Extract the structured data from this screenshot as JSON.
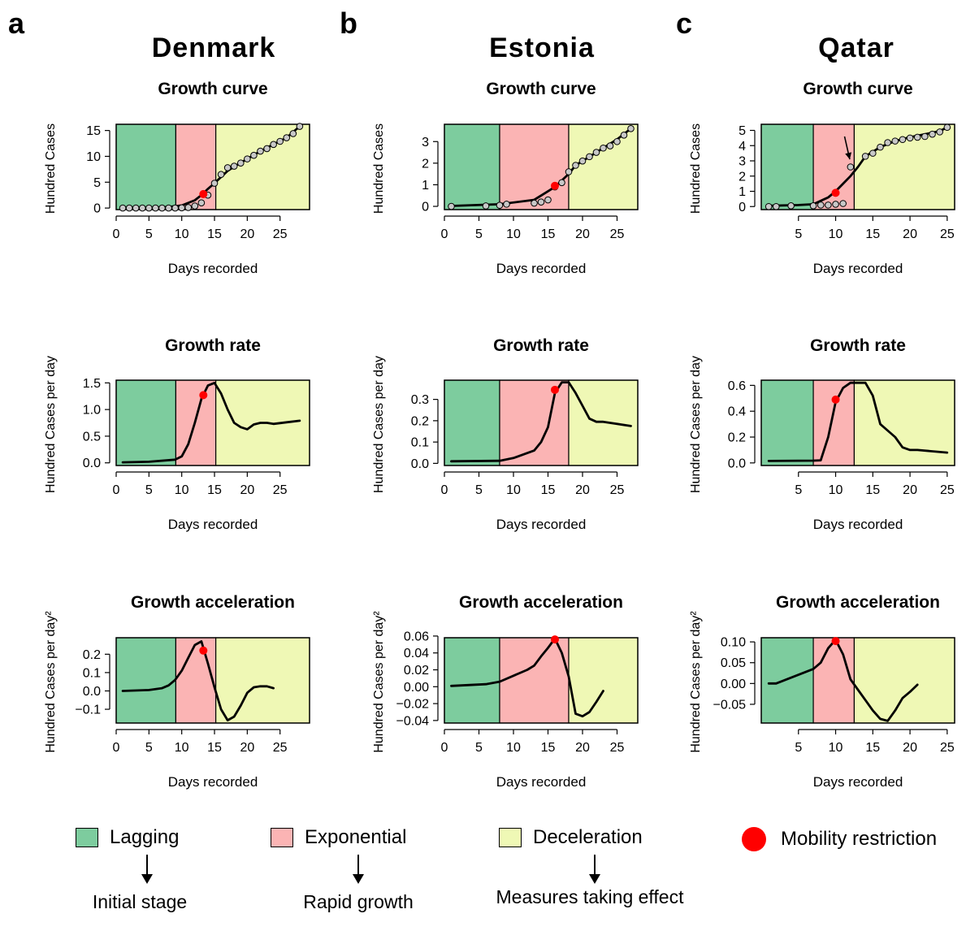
{
  "panel_letters": [
    "a",
    "b",
    "c"
  ],
  "countries": [
    "Denmark",
    "Estonia",
    "Qatar"
  ],
  "colors": {
    "lagging": "#7dcc9e",
    "exponential": "#fbb4b4",
    "deceleration": "#eff8b5",
    "mobility": "#ff0000",
    "points": "#c8c8c8"
  },
  "legend": {
    "lagging": {
      "label": "Lagging",
      "desc": "Initial stage"
    },
    "exponential": {
      "label": "Exponential",
      "desc": "Rapid growth"
    },
    "deceleration": {
      "label": "Deceleration",
      "desc": "Measures taking effect"
    },
    "mobility": {
      "label": "Mobility restriction"
    }
  },
  "chart_data": [
    {
      "country": "Denmark",
      "row": 0,
      "col": 0,
      "type": "line",
      "title": "Growth curve",
      "xlabel": "Days recorded",
      "ylabel": "Hundred Cases",
      "xlim": [
        0,
        29.5
      ],
      "ylim": [
        -0.3,
        16.2
      ],
      "xticks": [
        0,
        5,
        10,
        15,
        20,
        25
      ],
      "yticks": [
        0,
        5,
        10,
        15
      ],
      "phases": [
        {
          "stage": "lagging",
          "from": 0,
          "to": 9.1
        },
        {
          "stage": "exponential",
          "from": 9.1,
          "to": 15.2
        },
        {
          "stage": "deceleration",
          "from": 15.2,
          "to": 29.5
        }
      ],
      "curve": [
        [
          1,
          0
        ],
        [
          5,
          0.02
        ],
        [
          8,
          0.2
        ],
        [
          10,
          0.5
        ],
        [
          12,
          1.5
        ],
        [
          13,
          2.5
        ],
        [
          14,
          3.7
        ],
        [
          15,
          4.8
        ],
        [
          16,
          6
        ],
        [
          17,
          7.2
        ],
        [
          18,
          8
        ],
        [
          20,
          9.5
        ],
        [
          22,
          11
        ],
        [
          24,
          12.3
        ],
        [
          26,
          13.6
        ],
        [
          28,
          15.8
        ]
      ],
      "points": [
        [
          1,
          0
        ],
        [
          2,
          0
        ],
        [
          3,
          0
        ],
        [
          4,
          0
        ],
        [
          5,
          0
        ],
        [
          6,
          0
        ],
        [
          7,
          0
        ],
        [
          8,
          0
        ],
        [
          9,
          0
        ],
        [
          10,
          0.05
        ],
        [
          11,
          0.1
        ],
        [
          12,
          0.4
        ],
        [
          13,
          1
        ],
        [
          14,
          2.5
        ],
        [
          15,
          4.8
        ],
        [
          16,
          6.5
        ],
        [
          17,
          7.8
        ],
        [
          18,
          8.1
        ],
        [
          19,
          8.7
        ],
        [
          20,
          9.5
        ],
        [
          21,
          10.2
        ],
        [
          22,
          11
        ],
        [
          23,
          11.5
        ],
        [
          24,
          12.3
        ],
        [
          25,
          12.9
        ],
        [
          26,
          13.6
        ],
        [
          27,
          14.4
        ],
        [
          28,
          15.8
        ]
      ],
      "mobility": [
        13.3,
        2.7
      ]
    },
    {
      "country": "Estonia",
      "row": 0,
      "col": 1,
      "type": "line",
      "title": "Growth curve",
      "xlabel": "Days recorded",
      "ylabel": "Hundred Cases",
      "xlim": [
        0,
        28
      ],
      "ylim": [
        -0.15,
        3.8
      ],
      "xticks": [
        0,
        5,
        10,
        15,
        20,
        25
      ],
      "yticks": [
        0,
        1,
        2,
        3
      ],
      "phases": [
        {
          "stage": "lagging",
          "from": 0,
          "to": 8
        },
        {
          "stage": "exponential",
          "from": 8,
          "to": 18
        },
        {
          "stage": "deceleration",
          "from": 18,
          "to": 28
        }
      ],
      "curve": [
        [
          1,
          0.02
        ],
        [
          8,
          0.1
        ],
        [
          13,
          0.3
        ],
        [
          15,
          0.7
        ],
        [
          16,
          0.9
        ],
        [
          17,
          1.2
        ],
        [
          18,
          1.5
        ],
        [
          19,
          1.9
        ],
        [
          21,
          2.3
        ],
        [
          23,
          2.7
        ],
        [
          25,
          3.1
        ],
        [
          27,
          3.6
        ]
      ],
      "points": [
        [
          1,
          0
        ],
        [
          6,
          0.02
        ],
        [
          8,
          0.05
        ],
        [
          9,
          0.1
        ],
        [
          13,
          0.15
        ],
        [
          14,
          0.2
        ],
        [
          15,
          0.3
        ],
        [
          16,
          0.9
        ],
        [
          17,
          1.1
        ],
        [
          18,
          1.6
        ],
        [
          19,
          1.9
        ],
        [
          20,
          2.1
        ],
        [
          21,
          2.3
        ],
        [
          22,
          2.5
        ],
        [
          23,
          2.7
        ],
        [
          24,
          2.8
        ],
        [
          25,
          3.0
        ],
        [
          26,
          3.3
        ],
        [
          27,
          3.6
        ]
      ],
      "mobility": [
        16,
        0.95
      ]
    },
    {
      "country": "Qatar",
      "row": 0,
      "col": 2,
      "type": "line",
      "title": "Growth curve",
      "xlabel": "Days recorded",
      "ylabel": "Hundred Cases",
      "xlim": [
        0,
        26
      ],
      "ylim": [
        -0.2,
        5.4
      ],
      "xticks": [
        5,
        10,
        15,
        20,
        25
      ],
      "yticks": [
        0,
        1,
        2,
        3,
        4,
        5
      ],
      "phases": [
        {
          "stage": "lagging",
          "from": 0,
          "to": 7
        },
        {
          "stage": "exponential",
          "from": 7,
          "to": 12.5
        },
        {
          "stage": "deceleration",
          "from": 12.5,
          "to": 26
        }
      ],
      "curve": [
        [
          1,
          0.05
        ],
        [
          5,
          0.1
        ],
        [
          7,
          0.15
        ],
        [
          9,
          0.6
        ],
        [
          10,
          1.0
        ],
        [
          11,
          1.5
        ],
        [
          12,
          2.0
        ],
        [
          13,
          2.6
        ],
        [
          14,
          3.3
        ],
        [
          16,
          3.9
        ],
        [
          18,
          4.3
        ],
        [
          20,
          4.55
        ],
        [
          22,
          4.75
        ],
        [
          24,
          4.95
        ],
        [
          25,
          5.2
        ]
      ],
      "points": [
        [
          1,
          0
        ],
        [
          2,
          0
        ],
        [
          4,
          0.05
        ],
        [
          7,
          0.05
        ],
        [
          8,
          0.1
        ],
        [
          9,
          0.1
        ],
        [
          10,
          0.15
        ],
        [
          11,
          0.2
        ],
        [
          12,
          2.6
        ],
        [
          14,
          3.3
        ],
        [
          15,
          3.5
        ],
        [
          16,
          3.9
        ],
        [
          17,
          4.2
        ],
        [
          18,
          4.3
        ],
        [
          19,
          4.4
        ],
        [
          20,
          4.5
        ],
        [
          21,
          4.55
        ],
        [
          22,
          4.6
        ],
        [
          23,
          4.75
        ],
        [
          24,
          4.9
        ],
        [
          25,
          5.2
        ]
      ],
      "mobility": [
        10,
        0.9
      ],
      "arrow": [
        [
          11.2,
          4.6
        ],
        [
          11.9,
          3.1
        ]
      ]
    },
    {
      "country": "Denmark",
      "row": 1,
      "col": 0,
      "type": "line",
      "title": "Growth rate",
      "xlabel": "Days recorded",
      "ylabel": "Hundred Cases per day",
      "xlim": [
        0,
        29.5
      ],
      "ylim": [
        -0.05,
        1.55
      ],
      "xticks": [
        0,
        5,
        10,
        15,
        20,
        25
      ],
      "yticks": [
        0.0,
        0.5,
        1.0,
        1.5
      ],
      "ydecimals": 1,
      "phases": [
        {
          "stage": "lagging",
          "from": 0,
          "to": 9.1
        },
        {
          "stage": "exponential",
          "from": 9.1,
          "to": 15.2
        },
        {
          "stage": "deceleration",
          "from": 15.2,
          "to": 29.5
        }
      ],
      "curve": [
        [
          1,
          0.01
        ],
        [
          5,
          0.02
        ],
        [
          9,
          0.06
        ],
        [
          10,
          0.12
        ],
        [
          11,
          0.35
        ],
        [
          12,
          0.75
        ],
        [
          13,
          1.2
        ],
        [
          14,
          1.45
        ],
        [
          15,
          1.5
        ],
        [
          16,
          1.3
        ],
        [
          17,
          1.0
        ],
        [
          18,
          0.75
        ],
        [
          19,
          0.67
        ],
        [
          20,
          0.63
        ],
        [
          21,
          0.72
        ],
        [
          22,
          0.75
        ],
        [
          23,
          0.75
        ],
        [
          24,
          0.73
        ],
        [
          26,
          0.76
        ],
        [
          28,
          0.79
        ]
      ],
      "mobility": [
        13.3,
        1.27
      ]
    },
    {
      "country": "Estonia",
      "row": 1,
      "col": 1,
      "type": "line",
      "title": "Growth rate",
      "xlabel": "Days recorded",
      "ylabel": "Hundred Cases per day",
      "xlim": [
        0,
        28
      ],
      "ylim": [
        -0.01,
        0.39
      ],
      "xticks": [
        0,
        5,
        10,
        15,
        20,
        25
      ],
      "yticks": [
        0.0,
        0.1,
        0.2,
        0.3
      ],
      "ydecimals": 1,
      "phases": [
        {
          "stage": "lagging",
          "from": 0,
          "to": 8
        },
        {
          "stage": "exponential",
          "from": 8,
          "to": 18
        },
        {
          "stage": "deceleration",
          "from": 18,
          "to": 28
        }
      ],
      "curve": [
        [
          1,
          0.01
        ],
        [
          8,
          0.012
        ],
        [
          10,
          0.025
        ],
        [
          13,
          0.06
        ],
        [
          14,
          0.1
        ],
        [
          15,
          0.17
        ],
        [
          16,
          0.33
        ],
        [
          17,
          0.38
        ],
        [
          18,
          0.38
        ],
        [
          19,
          0.33
        ],
        [
          20,
          0.27
        ],
        [
          21,
          0.21
        ],
        [
          22,
          0.195
        ],
        [
          23,
          0.195
        ],
        [
          27,
          0.175
        ]
      ],
      "mobility": [
        16,
        0.345
      ]
    },
    {
      "country": "Qatar",
      "row": 1,
      "col": 2,
      "type": "line",
      "title": "Growth rate",
      "xlabel": "Days recorded",
      "ylabel": "Hundred Cases per day",
      "xlim": [
        0,
        26
      ],
      "ylim": [
        -0.02,
        0.64
      ],
      "xticks": [
        5,
        10,
        15,
        20,
        25
      ],
      "yticks": [
        0.0,
        0.2,
        0.4,
        0.6
      ],
      "ydecimals": 1,
      "phases": [
        {
          "stage": "lagging",
          "from": 0,
          "to": 7
        },
        {
          "stage": "exponential",
          "from": 7,
          "to": 12.5
        },
        {
          "stage": "deceleration",
          "from": 12.5,
          "to": 26
        }
      ],
      "curve": [
        [
          1,
          0.015
        ],
        [
          7,
          0.018
        ],
        [
          8,
          0.02
        ],
        [
          9,
          0.2
        ],
        [
          10,
          0.47
        ],
        [
          11,
          0.58
        ],
        [
          12,
          0.62
        ],
        [
          13,
          0.62
        ],
        [
          14,
          0.62
        ],
        [
          15,
          0.52
        ],
        [
          16,
          0.3
        ],
        [
          17,
          0.25
        ],
        [
          18,
          0.2
        ],
        [
          19,
          0.12
        ],
        [
          20,
          0.1
        ],
        [
          21,
          0.1
        ],
        [
          25,
          0.08
        ]
      ],
      "mobility": [
        10,
        0.49
      ]
    },
    {
      "country": "Denmark",
      "row": 2,
      "col": 0,
      "type": "line",
      "title": "Growth acceleration",
      "xlabel": "Days recorded",
      "ylabel": "Hundred Cases per day²",
      "xlim": [
        0,
        29.5
      ],
      "ylim": [
        -0.175,
        0.29
      ],
      "xticks": [
        0,
        5,
        10,
        15,
        20,
        25
      ],
      "yticks": [
        -0.1,
        0.0,
        0.1,
        0.2
      ],
      "ydecimals": 1,
      "phases": [
        {
          "stage": "lagging",
          "from": 0,
          "to": 9.1
        },
        {
          "stage": "exponential",
          "from": 9.1,
          "to": 15.2
        },
        {
          "stage": "deceleration",
          "from": 15.2,
          "to": 29.5
        }
      ],
      "curve": [
        [
          1,
          0.0
        ],
        [
          5,
          0.005
        ],
        [
          7,
          0.015
        ],
        [
          8,
          0.03
        ],
        [
          9,
          0.06
        ],
        [
          10,
          0.11
        ],
        [
          11,
          0.18
        ],
        [
          12,
          0.25
        ],
        [
          13,
          0.27
        ],
        [
          14,
          0.15
        ],
        [
          15,
          0.02
        ],
        [
          16,
          -0.1
        ],
        [
          17,
          -0.16
        ],
        [
          18,
          -0.14
        ],
        [
          19,
          -0.08
        ],
        [
          20,
          -0.01
        ],
        [
          21,
          0.02
        ],
        [
          22,
          0.025
        ],
        [
          23,
          0.025
        ],
        [
          24,
          0.015
        ]
      ],
      "mobility": [
        13.3,
        0.22
      ]
    },
    {
      "country": "Estonia",
      "row": 2,
      "col": 1,
      "type": "line",
      "title": "Growth acceleration",
      "xlabel": "Days recorded",
      "ylabel": "Hundred Cases per day²",
      "xlim": [
        0,
        28
      ],
      "ylim": [
        -0.043,
        0.058
      ],
      "xticks": [
        0,
        5,
        10,
        15,
        20,
        25
      ],
      "yticks": [
        -0.04,
        -0.02,
        0.0,
        0.02,
        0.04,
        0.06
      ],
      "ydecimals": 2,
      "phases": [
        {
          "stage": "lagging",
          "from": 0,
          "to": 8
        },
        {
          "stage": "exponential",
          "from": 8,
          "to": 18
        },
        {
          "stage": "deceleration",
          "from": 18,
          "to": 28
        }
      ],
      "curve": [
        [
          1,
          0.001
        ],
        [
          6,
          0.003
        ],
        [
          8,
          0.006
        ],
        [
          10,
          0.013
        ],
        [
          12,
          0.02
        ],
        [
          13,
          0.025
        ],
        [
          14,
          0.036
        ],
        [
          15,
          0.046
        ],
        [
          16,
          0.057
        ],
        [
          17,
          0.04
        ],
        [
          18,
          0.012
        ],
        [
          19,
          -0.032
        ],
        [
          20,
          -0.035
        ],
        [
          21,
          -0.03
        ],
        [
          22,
          -0.018
        ],
        [
          23,
          -0.005
        ]
      ],
      "mobility": [
        16,
        0.056
      ]
    },
    {
      "country": "Qatar",
      "row": 2,
      "col": 2,
      "type": "line",
      "title": "Growth acceleration",
      "xlabel": "Days recorded",
      "ylabel": "Hundred Cases per day²",
      "xlim": [
        0,
        26
      ],
      "ylim": [
        -0.095,
        0.11
      ],
      "xticks": [
        5,
        10,
        15,
        20,
        25
      ],
      "yticks": [
        -0.05,
        0.0,
        0.05,
        0.1
      ],
      "ytick_labels": [
        "−0.05",
        "0.00",
        "0.05",
        "0.10"
      ],
      "phases": [
        {
          "stage": "lagging",
          "from": 0,
          "to": 7
        },
        {
          "stage": "exponential",
          "from": 7,
          "to": 12.5
        },
        {
          "stage": "deceleration",
          "from": 12.5,
          "to": 26
        }
      ],
      "curve": [
        [
          1,
          0.0
        ],
        [
          2,
          0.0
        ],
        [
          7,
          0.035
        ],
        [
          8,
          0.05
        ],
        [
          9,
          0.085
        ],
        [
          10,
          0.105
        ],
        [
          11,
          0.07
        ],
        [
          12,
          0.01
        ],
        [
          13,
          -0.015
        ],
        [
          14,
          -0.04
        ],
        [
          15,
          -0.065
        ],
        [
          16,
          -0.085
        ],
        [
          17,
          -0.09
        ],
        [
          18,
          -0.065
        ],
        [
          19,
          -0.035
        ],
        [
          20,
          -0.02
        ],
        [
          21,
          -0.003
        ]
      ],
      "mobility": [
        10,
        0.102
      ]
    }
  ]
}
